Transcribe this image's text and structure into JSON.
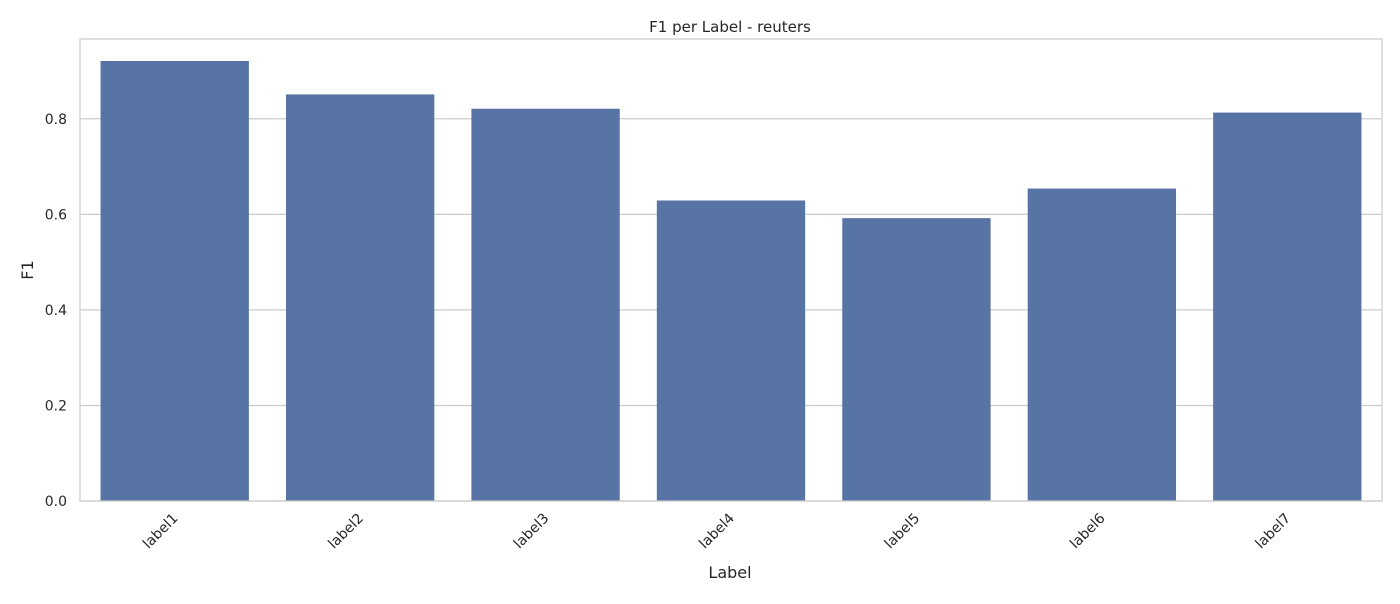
{
  "chart_data": {
    "type": "bar",
    "title": "F1 per Label - reuters",
    "xlabel": "Label",
    "ylabel": "F1",
    "categories": [
      "label1",
      "label2",
      "label3",
      "label4",
      "label5",
      "label6",
      "label7"
    ],
    "values": [
      0.921,
      0.851,
      0.821,
      0.629,
      0.592,
      0.654,
      0.813
    ],
    "ylim": [
      0,
      0.967
    ],
    "yticks": [
      0.0,
      0.2,
      0.4,
      0.6,
      0.8
    ],
    "ytick_labels": [
      "0.0",
      "0.2",
      "0.4",
      "0.6",
      "0.8"
    ],
    "grid": "horizontal",
    "bar_color": "#5874a4",
    "grid_color": "#cccccc",
    "frame_color": "#cccccc"
  }
}
